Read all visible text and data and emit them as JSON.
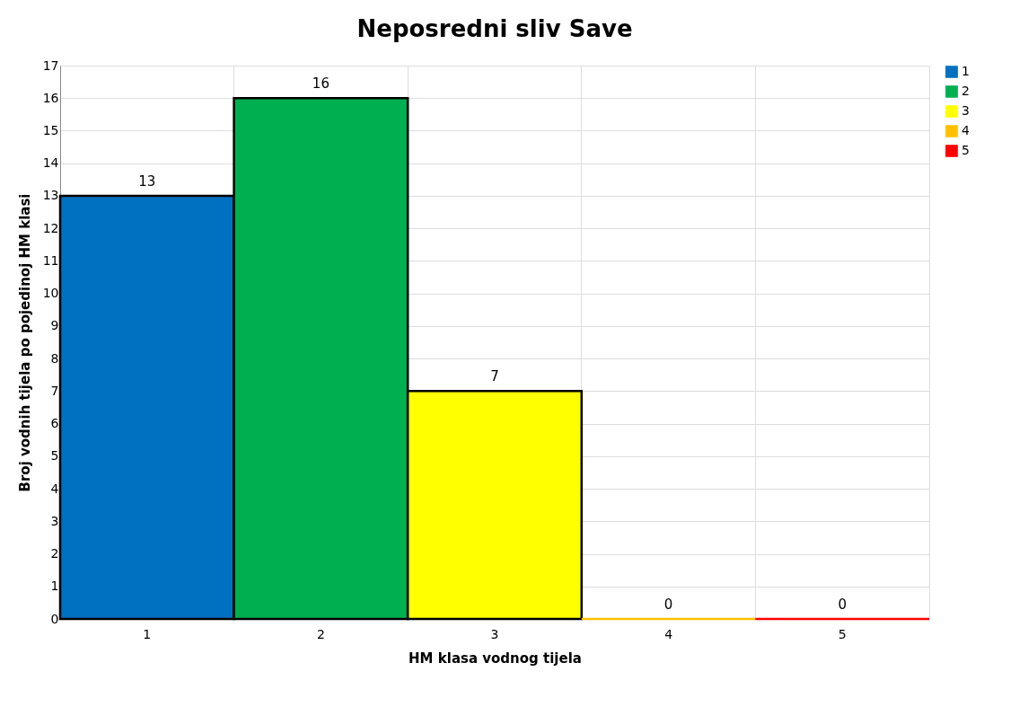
{
  "chart_data": {
    "type": "bar",
    "title": "Neposredni sliv Save",
    "xlabel": "HM klasa vodnog tijela",
    "ylabel": "Broj vodnih tijela po pojedinoj HM klasi",
    "categories": [
      "1",
      "2",
      "3",
      "4",
      "5"
    ],
    "series": [
      {
        "name": "1",
        "color": "#0070c0",
        "values": [
          13,
          null,
          null,
          null,
          null
        ]
      },
      {
        "name": "2",
        "color": "#00b050",
        "values": [
          null,
          16,
          null,
          null,
          null
        ]
      },
      {
        "name": "3",
        "color": "#ffff00",
        "values": [
          null,
          null,
          7,
          null,
          null
        ]
      },
      {
        "name": "4",
        "color": "#ffc000",
        "values": [
          null,
          null,
          null,
          0,
          null
        ]
      },
      {
        "name": "5",
        "color": "#ff0000",
        "values": [
          null,
          null,
          null,
          null,
          0
        ]
      }
    ],
    "ylim": [
      0,
      17
    ],
    "yticks": [
      0,
      1,
      2,
      3,
      4,
      5,
      6,
      7,
      8,
      9,
      10,
      11,
      12,
      13,
      14,
      15,
      16,
      17
    ],
    "grid": true,
    "legend": "right",
    "data_labels": true
  }
}
